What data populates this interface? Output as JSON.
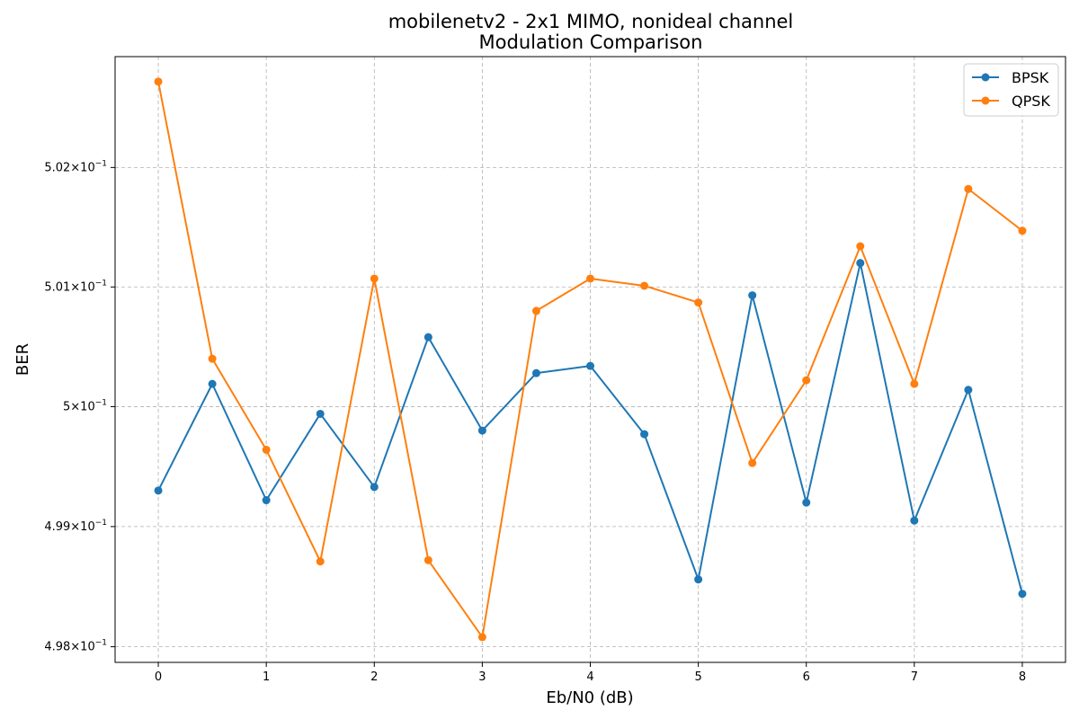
{
  "chart_data": {
    "type": "line",
    "title_line1": "mobilenetv2 - 2x1 MIMO, nonideal channel",
    "title_line2": "Modulation Comparison",
    "xlabel": "Eb/N0 (dB)",
    "ylabel": "BER",
    "y_scale": "log",
    "xlim": [
      -0.4,
      8.4
    ],
    "ylim": [
      0.49787,
      0.50293
    ],
    "x_ticks": [
      0,
      1,
      2,
      3,
      4,
      5,
      6,
      7,
      8
    ],
    "y_ticks": [
      {
        "value": 0.498,
        "mantissa": "4.98",
        "exp": "−1"
      },
      {
        "value": 0.499,
        "mantissa": "4.99",
        "exp": "−1"
      },
      {
        "value": 0.5,
        "mantissa": "5",
        "exp": "−1"
      },
      {
        "value": 0.501,
        "mantissa": "5.01",
        "exp": "−1"
      },
      {
        "value": 0.502,
        "mantissa": "5.02",
        "exp": "−1"
      }
    ],
    "tick_times": "×",
    "tick_base": "10",
    "grid": true,
    "legend_position": "top-right",
    "x": [
      0,
      0.5,
      1,
      1.5,
      2,
      2.5,
      3,
      3.5,
      4,
      4.5,
      5,
      5.5,
      6,
      6.5,
      7,
      7.5,
      8
    ],
    "series": [
      {
        "name": "BPSK",
        "color": "#1f77b4",
        "values": [
          0.4993,
          0.50019,
          0.49922,
          0.49994,
          0.49933,
          0.50058,
          0.4998,
          0.50028,
          0.50034,
          0.49977,
          0.49856,
          0.50093,
          0.4992,
          0.5012,
          0.49905,
          0.50014,
          0.49844
        ]
      },
      {
        "name": "QPSK",
        "color": "#ff7f0e",
        "values": [
          0.50272,
          0.5004,
          0.49964,
          0.49871,
          0.50107,
          0.49872,
          0.49808,
          0.5008,
          0.50107,
          0.50101,
          0.50087,
          0.49953,
          0.50022,
          0.50134,
          0.50019,
          0.50182,
          0.50147
        ]
      }
    ]
  }
}
